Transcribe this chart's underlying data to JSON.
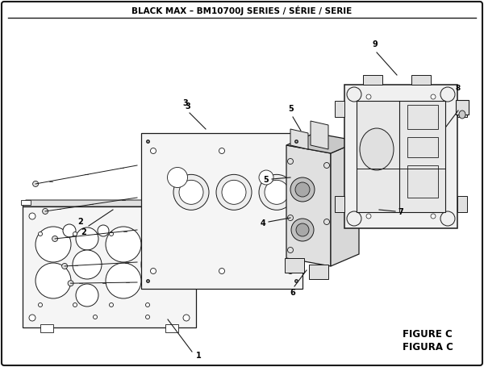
{
  "title": "BLACK MAX – BM10700J SERIES / SÉRIE / SERIE",
  "figure_label": "FIGURE C",
  "figure_label2": "FIGURA C",
  "bg_color": "#ffffff",
  "line_color": "#1a1a1a",
  "fill_light": "#f0f0f0",
  "fill_mid": "#e0e0e0",
  "fill_dark": "#c8c8c8"
}
